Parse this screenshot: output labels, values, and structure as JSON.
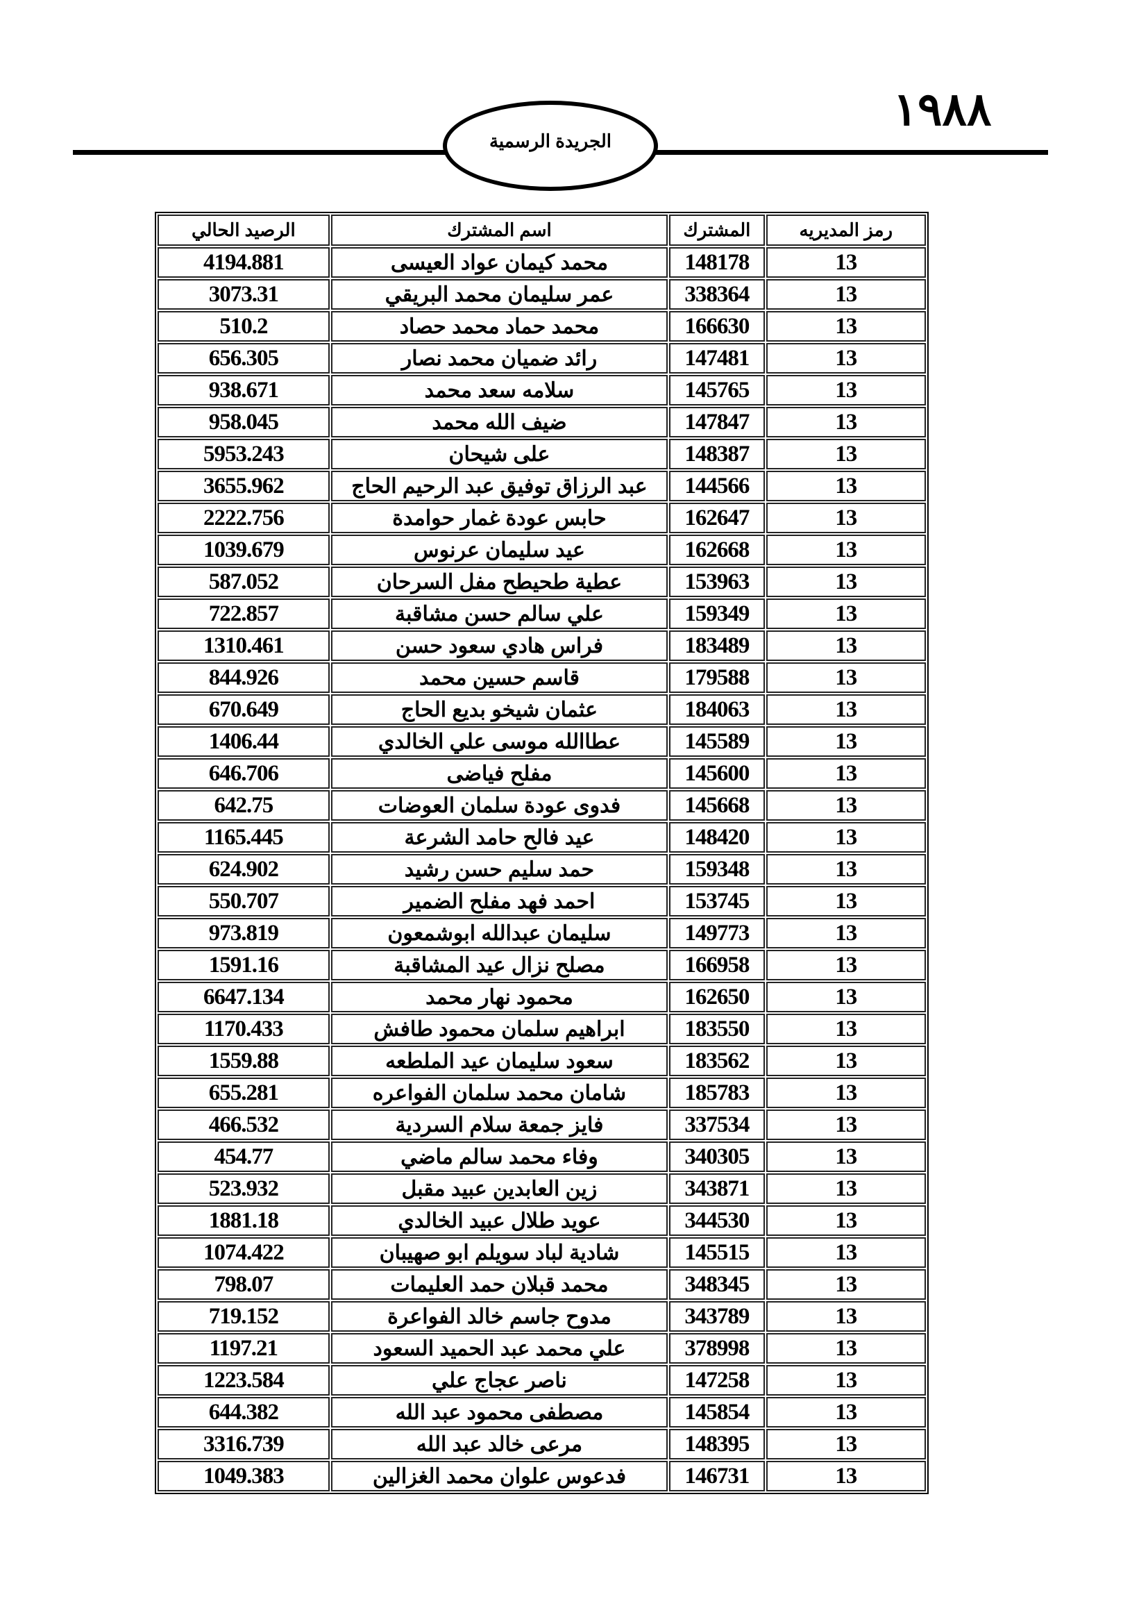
{
  "header": {
    "page_number": "١٩٨٨",
    "publication_title": "الجريدة الرسمية"
  },
  "table": {
    "columns": [
      "رمز المديريه",
      "المشترك",
      "اسم المشترك",
      "الرصيد الحالي"
    ],
    "rows": [
      [
        "13",
        "148178",
        "محمد كيمان عواد العيسى",
        "4194.881"
      ],
      [
        "13",
        "338364",
        "عمر سليمان محمد البريقي",
        "3073.31"
      ],
      [
        "13",
        "166630",
        "محمد حماد محمد حصاد",
        "510.2"
      ],
      [
        "13",
        "147481",
        "رائد ضميان محمد نصار",
        "656.305"
      ],
      [
        "13",
        "145765",
        "سلامه سعد محمد",
        "938.671"
      ],
      [
        "13",
        "147847",
        "ضيف الله محمد",
        "958.045"
      ],
      [
        "13",
        "148387",
        "على شيحان",
        "5953.243"
      ],
      [
        "13",
        "144566",
        "عبد الرزاق توفيق عبد الرحيم الحاج",
        "3655.962"
      ],
      [
        "13",
        "162647",
        "حابس عودة غمار حوامدة",
        "2222.756"
      ],
      [
        "13",
        "162668",
        "عيد سليمان عرنوس",
        "1039.679"
      ],
      [
        "13",
        "153963",
        "عطية طحيطح مفل السرحان",
        "587.052"
      ],
      [
        "13",
        "159349",
        "علي سالم حسن مشاقبة",
        "722.857"
      ],
      [
        "13",
        "183489",
        "فراس هادي سعود حسن",
        "1310.461"
      ],
      [
        "13",
        "179588",
        "قاسم حسين محمد",
        "844.926"
      ],
      [
        "13",
        "184063",
        "عثمان شيخو بديع الحاج",
        "670.649"
      ],
      [
        "13",
        "145589",
        "عطاالله موسى علي الخالدي",
        "1406.44"
      ],
      [
        "13",
        "145600",
        "مفلح فياضى",
        "646.706"
      ],
      [
        "13",
        "145668",
        "فدوى عودة سلمان العوضات",
        "642.75"
      ],
      [
        "13",
        "148420",
        "عيد فالح حامد الشرعة",
        "1165.445"
      ],
      [
        "13",
        "159348",
        "حمد سليم حسن رشيد",
        "624.902"
      ],
      [
        "13",
        "153745",
        "احمد فهد مفلح الضمير",
        "550.707"
      ],
      [
        "13",
        "149773",
        "سليمان عبدالله ابوشمعون",
        "973.819"
      ],
      [
        "13",
        "166958",
        "مصلح نزال عيد المشاقبة",
        "1591.16"
      ],
      [
        "13",
        "162650",
        "محمود نهار محمد",
        "6647.134"
      ],
      [
        "13",
        "183550",
        "ابراهيم سلمان محمود طافش",
        "1170.433"
      ],
      [
        "13",
        "183562",
        "سعود سليمان عيد الملطعه",
        "1559.88"
      ],
      [
        "13",
        "185783",
        "شامان محمد سلمان الفواعره",
        "655.281"
      ],
      [
        "13",
        "337534",
        "فايز جمعة سلام السردية",
        "466.532"
      ],
      [
        "13",
        "340305",
        "وفاء محمد سالم ماضي",
        "454.77"
      ],
      [
        "13",
        "343871",
        "زين العابدين عبيد مقبل",
        "523.932"
      ],
      [
        "13",
        "344530",
        "عويد طلال عبيد الخالدي",
        "1881.18"
      ],
      [
        "13",
        "145515",
        "شادية لباد سويلم ابو صهيبان",
        "1074.422"
      ],
      [
        "13",
        "348345",
        "محمد قبلان حمد العليمات",
        "798.07"
      ],
      [
        "13",
        "343789",
        "مدوح جاسم خالد الفواعرة",
        "719.152"
      ],
      [
        "13",
        "378998",
        "علي محمد عبد الحميد السعود",
        "1197.21"
      ],
      [
        "13",
        "147258",
        "ناصر عجاج علي",
        "1223.584"
      ],
      [
        "13",
        "145854",
        "مصطفى محمود عبد الله",
        "644.382"
      ],
      [
        "13",
        "148395",
        "مرعى خالد عبد الله",
        "3316.739"
      ],
      [
        "13",
        "146731",
        "فدعوس علوان محمد الغزالين",
        "1049.383"
      ]
    ]
  }
}
